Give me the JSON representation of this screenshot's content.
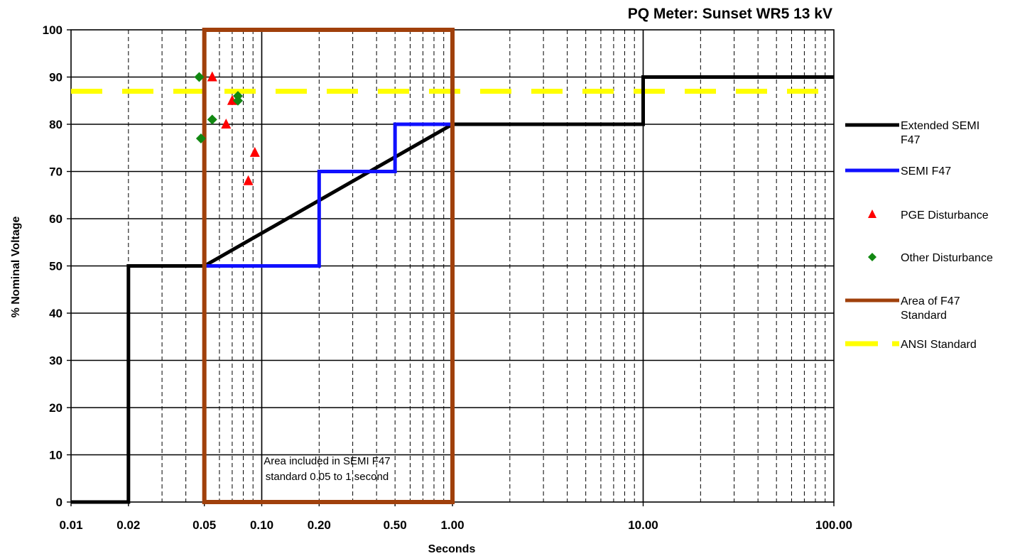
{
  "chart_data": {
    "type": "line",
    "title": "PQ Meter: Sunset WR5 13 kV",
    "xlabel": "Seconds",
    "ylabel": "% Nominal Voltage",
    "xscale": "log",
    "xlim": [
      0.01,
      100
    ],
    "ylim": [
      0,
      100
    ],
    "grid": true,
    "legend_position": "right",
    "x_tick_labels": [
      {
        "value": 0.01,
        "label": "0.01"
      },
      {
        "value": 0.02,
        "label": "0.02"
      },
      {
        "value": 0.05,
        "label": "0.05"
      },
      {
        "value": 0.1,
        "label": "0.10"
      },
      {
        "value": 0.2,
        "label": "0.20"
      },
      {
        "value": 0.5,
        "label": "0.50"
      },
      {
        "value": 1,
        "label": "1.00"
      },
      {
        "value": 10,
        "label": "10.00"
      },
      {
        "value": 100,
        "label": "100.00"
      }
    ],
    "y_ticks": [
      0,
      10,
      20,
      30,
      40,
      50,
      60,
      70,
      80,
      90,
      100
    ],
    "series": [
      {
        "name": "Extended SEMI F47",
        "color": "#000000",
        "style": "step-line",
        "x": [
          0.01,
          0.02,
          0.02,
          0.05,
          0.05,
          1,
          1,
          10,
          10,
          100
        ],
        "y": [
          0,
          0,
          50,
          50,
          50,
          80,
          80,
          80,
          90,
          90
        ]
      },
      {
        "name": "SEMI F47",
        "color": "#1010ff",
        "style": "step-line",
        "x": [
          0.05,
          0.2,
          0.2,
          0.5,
          0.5,
          1
        ],
        "y": [
          50,
          50,
          70,
          70,
          80,
          80
        ]
      },
      {
        "name": "PGE Disturbance",
        "color": "#ff0000",
        "style": "marker-triangle",
        "x": [
          0.055,
          0.065,
          0.07,
          0.085,
          0.092
        ],
        "y": [
          90,
          80,
          85,
          68,
          74
        ]
      },
      {
        "name": "Other Disturbance",
        "color": "#118811",
        "style": "marker-diamond",
        "x": [
          0.047,
          0.048,
          0.055,
          0.075,
          0.075
        ],
        "y": [
          90,
          77,
          81,
          86,
          85
        ]
      },
      {
        "name": "Area of F47 Standard",
        "color": "#a0400b",
        "style": "rectangle",
        "x": [
          0.05,
          1
        ],
        "y": [
          0,
          100
        ]
      },
      {
        "name": "ANSI Standard",
        "color": "#ffff00",
        "style": "dashed-line",
        "x": [
          0.01,
          100
        ],
        "y": [
          87,
          87
        ]
      }
    ],
    "annotations": [
      {
        "text": "Area included in SEMI F47\nstandard 0.05 to 1 second",
        "x": 0.22,
        "y": 8
      }
    ]
  }
}
